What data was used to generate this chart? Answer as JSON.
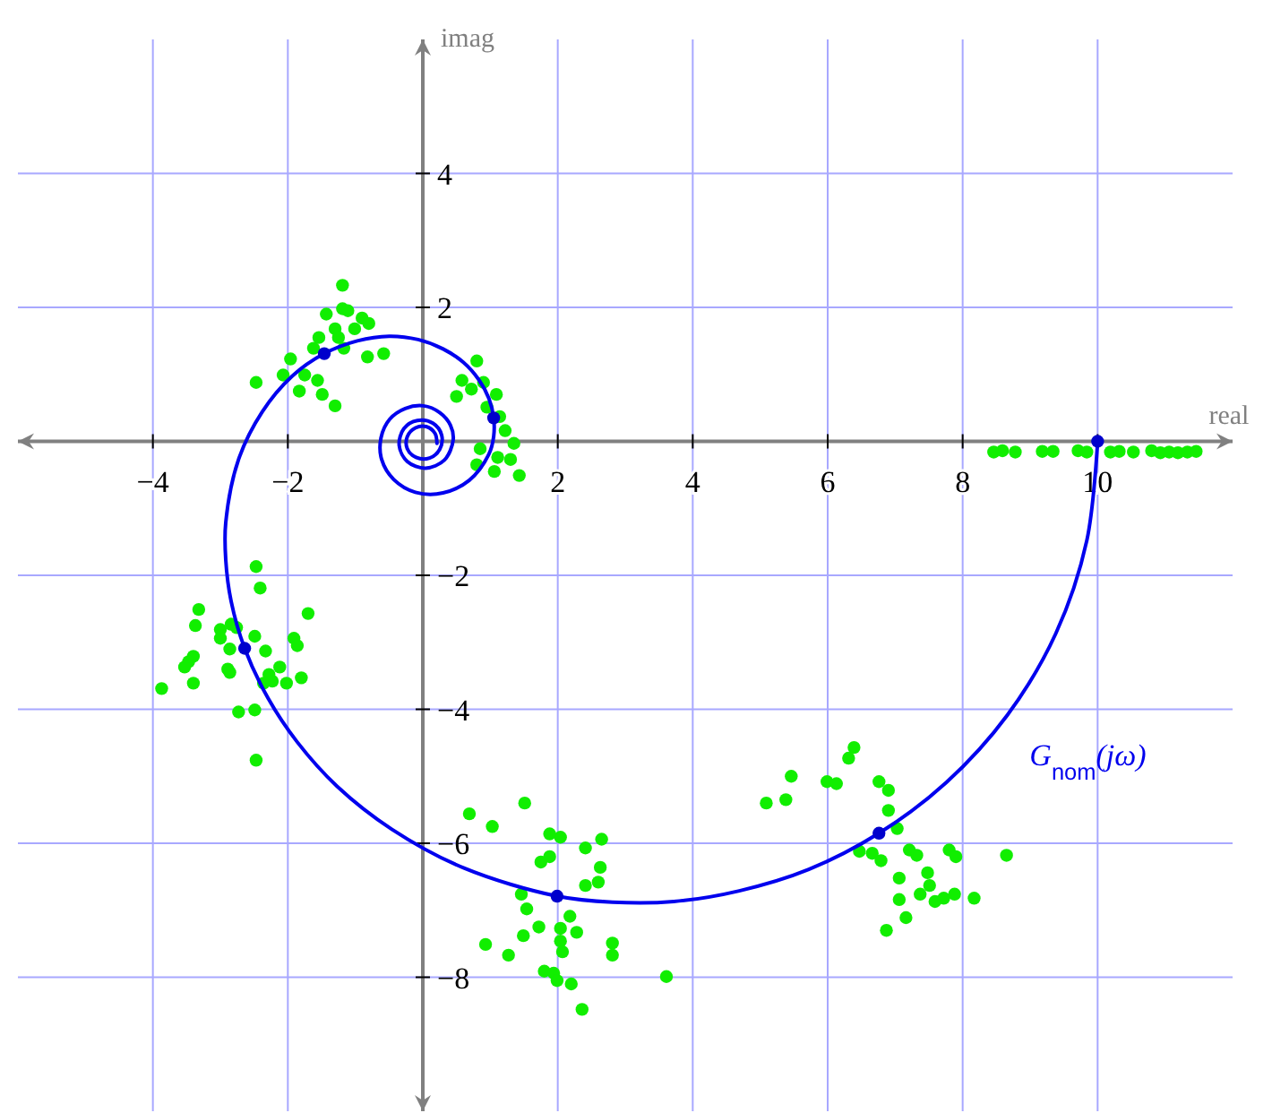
{
  "chart_data": {
    "type": "line",
    "xlabel": "real",
    "ylabel": "imag",
    "xlim": [
      -6,
      12
    ],
    "ylim": [
      -10,
      6
    ],
    "xticks": [
      -4,
      -2,
      2,
      4,
      6,
      8,
      10
    ],
    "yticks": [
      -8,
      -6,
      -4,
      -2,
      2,
      4
    ],
    "grid": true,
    "series": [
      {
        "type": "scatter",
        "marker": "circle",
        "color": "#11ee00",
        "x": [
          8.46,
          8.59,
          8.78,
          9.18,
          9.34,
          9.71,
          9.84,
          10.19,
          10.32,
          10.53,
          10.8,
          10.93,
          11.06,
          11.19,
          11.33,
          11.46,
          6.39,
          6.31,
          5.46,
          5.38,
          5.09,
          5.99,
          6.13,
          6.76,
          6.9,
          6.9,
          7.03,
          6.47,
          6.66,
          6.79,
          7.21,
          7.32,
          7.8,
          7.9,
          8.65,
          7.48,
          7.06,
          7.51,
          7.37,
          7.59,
          7.72,
          7.88,
          8.17,
          7.06,
          7.16,
          6.87,
          0.69,
          1.51,
          1.03,
          1.88,
          2.04,
          2.41,
          2.65,
          1.88,
          1.75,
          2.63,
          2.41,
          2.6,
          1.46,
          1.54,
          2.18,
          1.72,
          2.04,
          2.28,
          1.49,
          2.04,
          2.07,
          0.93,
          1.27,
          2.81,
          2.81,
          1.8,
          1.94,
          1.99,
          2.2,
          2.36,
          3.61,
          -2.47,
          -2.41,
          -3.32,
          -3.37,
          -1.7,
          -3,
          -2.84,
          -2.76,
          -3,
          -2.49,
          -1.91,
          -1.86,
          -2.86,
          -2.33,
          -3.4,
          -3.47,
          -3.53,
          -2.89,
          -2.86,
          -2.12,
          -2.28,
          -2.23,
          -2.36,
          -2.02,
          -1.8,
          -3.4,
          -3.87,
          -2.73,
          -2.49,
          -2.47,
          -1.19,
          -1.19,
          -1.11,
          -1.43,
          -0.9,
          -0.8,
          -1.01,
          -1.3,
          -1.54,
          -1.25,
          -1.62,
          -1.17,
          -0.82,
          -0.58,
          -1.96,
          -2.47,
          -2.07,
          -1.75,
          -1.56,
          -1.83,
          -1.49,
          -1.3,
          0.8,
          0.58,
          0.9,
          0.72,
          0.5,
          1.09,
          0.95,
          1.14,
          1.22,
          1.35,
          0.85,
          1.11,
          1.3,
          0.8,
          1.06,
          1.43
        ],
        "values": [
          -0.16,
          -0.14,
          -0.16,
          -0.15,
          -0.15,
          -0.14,
          -0.16,
          -0.16,
          -0.15,
          -0.16,
          -0.14,
          -0.17,
          -0.16,
          -0.17,
          -0.16,
          -0.15,
          -4.57,
          -4.73,
          -5,
          -5.35,
          -5.4,
          -5.08,
          -5.11,
          -5.08,
          -5.21,
          -5.51,
          -5.78,
          -6.12,
          -6.15,
          -6.26,
          -6.1,
          -6.18,
          -6.1,
          -6.2,
          -6.18,
          -6.44,
          -6.52,
          -6.63,
          -6.76,
          -6.87,
          -6.82,
          -6.76,
          -6.82,
          -6.84,
          -7.11,
          -7.3,
          -5.56,
          -5.4,
          -5.75,
          -5.86,
          -5.91,
          -6.07,
          -5.94,
          -6.2,
          -6.28,
          -6.36,
          -6.63,
          -6.58,
          -6.76,
          -6.98,
          -7.09,
          -7.25,
          -7.27,
          -7.33,
          -7.38,
          -7.46,
          -7.62,
          -7.51,
          -7.67,
          -7.49,
          -7.67,
          -7.91,
          -7.94,
          -8.05,
          -8.1,
          -8.48,
          -7.99,
          -1.87,
          -2.19,
          -2.51,
          -2.75,
          -2.57,
          -2.81,
          -2.73,
          -2.78,
          -2.94,
          -2.91,
          -2.94,
          -3.05,
          -3.1,
          -3.13,
          -3.21,
          -3.29,
          -3.37,
          -3.4,
          -3.45,
          -3.37,
          -3.48,
          -3.58,
          -3.61,
          -3.61,
          -3.53,
          -3.61,
          -3.69,
          -4.04,
          -4.01,
          -4.76,
          2.33,
          1.98,
          1.95,
          1.9,
          1.84,
          1.76,
          1.68,
          1.68,
          1.55,
          1.55,
          1.39,
          1.39,
          1.26,
          1.31,
          1.23,
          0.88,
          0.99,
          0.99,
          0.91,
          0.75,
          0.7,
          0.53,
          1.2,
          0.91,
          0.88,
          0.78,
          0.67,
          0.7,
          0.51,
          0.37,
          0.16,
          -0.03,
          -0.11,
          -0.24,
          -0.27,
          -0.35,
          -0.45,
          -0.51
        ]
      },
      {
        "name": "G$_{nom}$(jω)",
        "color": "#0000ee",
        "x": [
          10,
          9.84,
          9.38,
          8.66,
          7.76,
          6.76,
          5.72,
          4.69,
          3.72,
          2.81,
          1.99,
          0.61,
          -0.46,
          -1.27,
          -1.86,
          -2.29,
          -2.64,
          -2.84,
          -2.92,
          -2.92,
          -2.73,
          -2.38,
          -1.94,
          -1.46,
          -0.97,
          -0.5,
          -0.07,
          0.3,
          0.6,
          0.83,
          0.98,
          1.05,
          1.05,
          0.98,
          0.69,
          0.3,
          -0.11,
          -0.43,
          -0.61,
          -0.62,
          -0.49,
          -0.26,
          0.01,
          0.25,
          0.41,
          0.45,
          0.32,
          0.04,
          -0.23,
          -0.35,
          -0.28,
          -0.08,
          0.15,
          0.28,
          0.25,
          0.1,
          -0.1,
          -0.23,
          -0.23,
          -0.11,
          0.05,
          0.18,
          0.21
        ],
        "values": [
          0,
          -1.48,
          -2.87,
          -4.09,
          -5.09,
          -5.85,
          -6.39,
          -6.71,
          -6.87,
          -6.88,
          -6.79,
          -6.37,
          -5.79,
          -5.15,
          -4.49,
          -3.84,
          -3.09,
          -2.39,
          -1.77,
          -1.21,
          -0.27,
          0.44,
          0.97,
          1.31,
          1.5,
          1.57,
          1.52,
          1.38,
          1.18,
          0.92,
          0.64,
          0.35,
          0.07,
          -0.19,
          -0.58,
          -0.77,
          -0.76,
          -0.57,
          -0.27,
          0.05,
          0.33,
          0.49,
          0.53,
          0.43,
          0.24,
          0.02,
          -0.28,
          -0.4,
          -0.3,
          -0.06,
          0.19,
          0.31,
          0.27,
          0.09,
          -0.12,
          -0.25,
          -0.24,
          -0.11,
          0.07,
          0.2,
          0.22,
          0.12,
          -0.03
        ]
      },
      {
        "type": "scatter",
        "marker": "circle",
        "color": "#0000cc",
        "x": [
          10,
          6.76,
          1.99,
          -2.64,
          -1.46,
          1.05
        ],
        "values": [
          0,
          -5.85,
          -6.79,
          -3.09,
          1.31,
          0.35
        ]
      }
    ]
  }
}
